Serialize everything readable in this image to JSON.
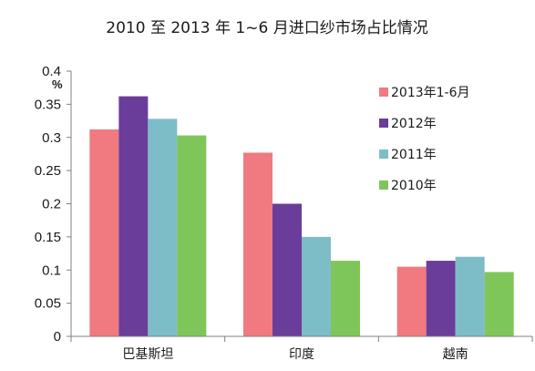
{
  "chart_data": {
    "type": "bar",
    "title": "2010 至 2013 年 1~6 月进口纱市场占比情况",
    "unit_label": "%",
    "categories": [
      "巴基斯坦",
      "印度",
      "越南"
    ],
    "ylim": [
      0,
      0.4
    ],
    "yticks": [
      "0",
      "0.05",
      "0.1",
      "0.15",
      "0.2",
      "0.25",
      "0.3",
      "0.35",
      "0.4"
    ],
    "ytick_values": [
      0,
      0.05,
      0.1,
      0.15,
      0.2,
      0.25,
      0.3,
      0.35,
      0.4
    ],
    "grid": false,
    "legend_position": "top-right",
    "series": [
      {
        "name": "2013年1-6月",
        "color": "#f07a80",
        "values": [
          0.312,
          0.277,
          0.105
        ]
      },
      {
        "name": "2012年",
        "color": "#6a3d9a",
        "values": [
          0.362,
          0.2,
          0.114
        ]
      },
      {
        "name": "2011年",
        "color": "#7dbdc8",
        "values": [
          0.328,
          0.15,
          0.12
        ]
      },
      {
        "name": "2010年",
        "color": "#7fc65a",
        "values": [
          0.303,
          0.114,
          0.097
        ]
      }
    ]
  }
}
